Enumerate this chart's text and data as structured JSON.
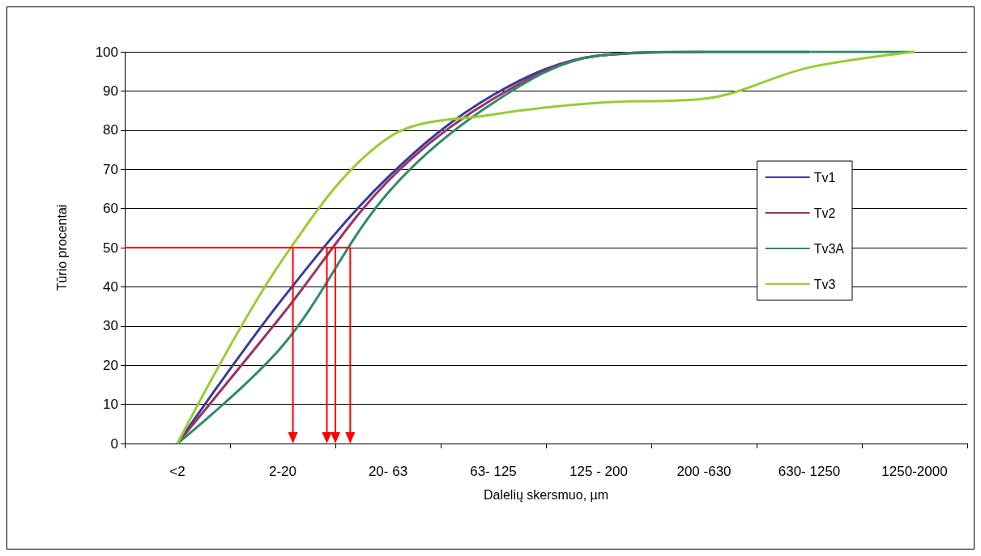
{
  "chart_data": {
    "type": "line",
    "xlabel": "Dalelių skersmuo, µm",
    "ylabel": "Tūrio procentai",
    "categories": [
      "<2",
      "2-20",
      "20- 63",
      "63- 125",
      "125 - 200",
      "200 -630",
      "630- 1250",
      "1250-2000"
    ],
    "series": [
      {
        "name": "Tv1",
        "color": "#3a3a9a",
        "values": [
          0,
          37,
          68,
          89,
          99,
          100,
          100,
          null
        ]
      },
      {
        "name": "Tv2",
        "color": "#993366",
        "values": [
          0,
          33,
          67,
          88,
          99,
          100,
          null,
          null
        ]
      },
      {
        "name": "Tv3A",
        "color": "#2e8b6a",
        "values": [
          0,
          25,
          64,
          87,
          99,
          100,
          100,
          100
        ]
      },
      {
        "name": "Tv3",
        "color": "#99cc33",
        "values": [
          0,
          47,
          78,
          84,
          87,
          88,
          96,
          100
        ]
      }
    ],
    "ylim": [
      0,
      100
    ],
    "yticks": [
      0,
      10,
      20,
      30,
      40,
      50,
      60,
      70,
      80,
      90,
      100
    ],
    "grid": "y",
    "legend": "right",
    "marker": "none",
    "line_style": "solid",
    "ref_lines": [
      {
        "axis": "y",
        "value": 50,
        "color": "#ff0000"
      }
    ]
  }
}
